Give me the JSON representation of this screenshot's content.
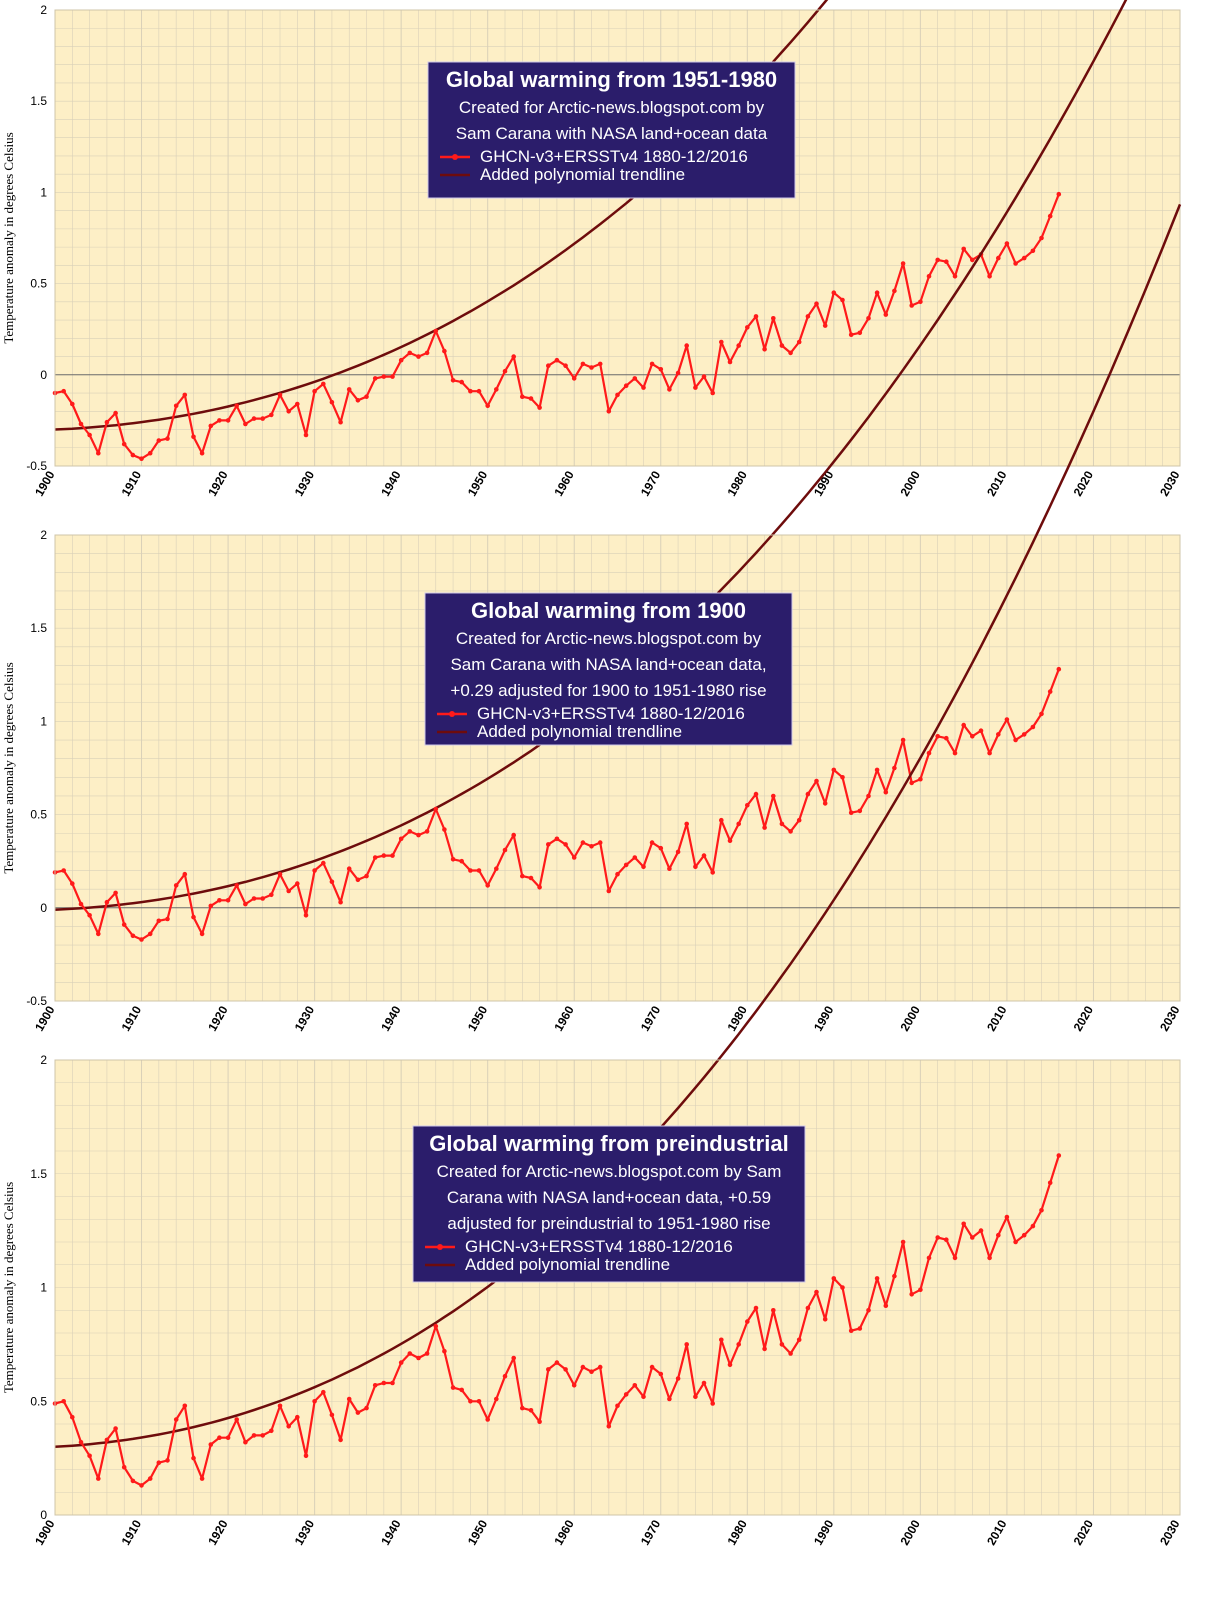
{
  "colors": {
    "background": "#fdefc6",
    "grid": "#d9d0b8",
    "zero_line": "#6b6b6b",
    "data_series": "#ff1a1a",
    "trendline": "#6e0c0c",
    "legend_bg": "#2b1d6b",
    "legend_text": "#ffffff"
  },
  "anomalies_1951_1980": {
    "years": [
      1900,
      1901,
      1902,
      1903,
      1904,
      1905,
      1906,
      1907,
      1908,
      1909,
      1910,
      1911,
      1912,
      1913,
      1914,
      1915,
      1916,
      1917,
      1918,
      1919,
      1920,
      1921,
      1922,
      1923,
      1924,
      1925,
      1926,
      1927,
      1928,
      1929,
      1930,
      1931,
      1932,
      1933,
      1934,
      1935,
      1936,
      1937,
      1938,
      1939,
      1940,
      1941,
      1942,
      1943,
      1944,
      1945,
      1946,
      1947,
      1948,
      1949,
      1950,
      1951,
      1952,
      1953,
      1954,
      1955,
      1956,
      1957,
      1958,
      1959,
      1960,
      1961,
      1962,
      1963,
      1964,
      1965,
      1966,
      1967,
      1968,
      1969,
      1970,
      1971,
      1972,
      1973,
      1974,
      1975,
      1976,
      1977,
      1978,
      1979,
      1980,
      1981,
      1982,
      1983,
      1984,
      1985,
      1986,
      1987,
      1988,
      1989,
      1990,
      1991,
      1992,
      1993,
      1994,
      1995,
      1996,
      1997,
      1998,
      1999,
      2000,
      2001,
      2002,
      2003,
      2004,
      2005,
      2006,
      2007,
      2008,
      2009,
      2010,
      2011,
      2012,
      2013,
      2014,
      2015,
      2016
    ],
    "values": [
      -0.1,
      -0.09,
      -0.16,
      -0.27,
      -0.33,
      -0.43,
      -0.26,
      -0.21,
      -0.38,
      -0.44,
      -0.46,
      -0.43,
      -0.36,
      -0.35,
      -0.17,
      -0.11,
      -0.34,
      -0.43,
      -0.28,
      -0.25,
      -0.25,
      -0.17,
      -0.27,
      -0.24,
      -0.24,
      -0.22,
      -0.11,
      -0.2,
      -0.16,
      -0.33,
      -0.09,
      -0.05,
      -0.15,
      -0.26,
      -0.08,
      -0.14,
      -0.12,
      -0.02,
      -0.01,
      -0.01,
      0.08,
      0.12,
      0.1,
      0.12,
      0.24,
      0.13,
      -0.03,
      -0.04,
      -0.09,
      -0.09,
      -0.17,
      -0.08,
      0.02,
      0.1,
      -0.12,
      -0.13,
      -0.18,
      0.05,
      0.08,
      0.05,
      -0.02,
      0.06,
      0.04,
      0.06,
      -0.2,
      -0.11,
      -0.06,
      -0.02,
      -0.07,
      0.06,
      0.03,
      -0.08,
      0.01,
      0.16,
      -0.07,
      -0.01,
      -0.1,
      0.18,
      0.07,
      0.16,
      0.26,
      0.32,
      0.14,
      0.31,
      0.16,
      0.12,
      0.18,
      0.32,
      0.39,
      0.27,
      0.45,
      0.41,
      0.22,
      0.23,
      0.31,
      0.45,
      0.33,
      0.46,
      0.61,
      0.38,
      0.4,
      0.54,
      0.63,
      0.62,
      0.54,
      0.69,
      0.63,
      0.66,
      0.54,
      0.64,
      0.72,
      0.61,
      0.64,
      0.68,
      0.75,
      0.87,
      0.99
    ]
  },
  "charts": [
    {
      "chart_data": {
        "type": "line",
        "title": "Global warming from 1951-1980",
        "subtitle_lines": [
          "Created for Arctic-news.blogspot.com by",
          "Sam Carana with NASA land+ocean data"
        ],
        "xlabel": "",
        "ylabel": "Temperature anomaly in degrees Celsius",
        "xlim": [
          1900,
          2030
        ],
        "ylim": [
          -0.5,
          2
        ],
        "x_ticks": [
          "1900",
          "1910",
          "1920",
          "1930",
          "1940",
          "1950",
          "1960",
          "1970",
          "1980",
          "1990",
          "2000",
          "2010",
          "2020",
          "2030"
        ],
        "y_ticks": [
          "-0.5",
          "0",
          "0.5",
          "1",
          "1.5",
          "2"
        ],
        "grid": true,
        "offset": 0,
        "series": [
          {
            "name": "GHCN-v3+ERSSTv4 1880-12/2016",
            "kind": "data"
          },
          {
            "name": "Added polynomial trendline",
            "kind": "trend",
            "coefficients": [
              -0.3,
              0.00198,
              0.0002,
              8.3e-07
            ]
          }
        ]
      }
    },
    {
      "chart_data": {
        "type": "line",
        "title": "Global warming from 1900",
        "subtitle_lines": [
          "Created for Arctic-news.blogspot.com by",
          "Sam Carana with NASA land+ocean data,",
          "+0.29 adjusted for 1900 to 1951-1980 rise"
        ],
        "xlabel": "",
        "ylabel": "Temperature anomaly in degrees Celsius",
        "xlim": [
          1900,
          2030
        ],
        "ylim": [
          -0.5,
          2
        ],
        "x_ticks": [
          "1900",
          "1910",
          "1920",
          "1930",
          "1940",
          "1950",
          "1960",
          "1970",
          "1980",
          "1990",
          "2000",
          "2010",
          "2020",
          "2030"
        ],
        "y_ticks": [
          "-0.5",
          "0",
          "0.5",
          "1",
          "1.5",
          "2"
        ],
        "grid": true,
        "offset": 0.29,
        "series": [
          {
            "name": "GHCN-v3+ERSSTv4 1880-12/2016",
            "kind": "data"
          },
          {
            "name": "Added polynomial trendline",
            "kind": "trend",
            "coefficients": [
              -0.01,
              0.00198,
              0.0002,
              8.3e-07
            ]
          }
        ]
      }
    },
    {
      "chart_data": {
        "type": "line",
        "title": "Global warming from preindustrial",
        "subtitle_lines": [
          "Created for Arctic-news.blogspot.com by Sam",
          "Carana with NASA land+ocean data, +0.59",
          "adjusted for preindustrial to 1951-1980 rise"
        ],
        "xlabel": "",
        "ylabel": "Temperature anomaly in degrees Celsius",
        "xlim": [
          1900,
          2030
        ],
        "ylim": [
          0,
          2
        ],
        "x_ticks": [
          "1900",
          "1910",
          "1920",
          "1930",
          "1940",
          "1950",
          "1960",
          "1970",
          "1980",
          "1990",
          "2000",
          "2010",
          "2020",
          "2030"
        ],
        "y_ticks": [
          "0",
          "0.5",
          "1",
          "1.5",
          "2"
        ],
        "grid": true,
        "offset": 0.59,
        "series": [
          {
            "name": "GHCN-v3+ERSSTv4 1880-12/2016",
            "kind": "data"
          },
          {
            "name": "Added polynomial trendline",
            "kind": "trend",
            "coefficients": [
              0.3,
              0.00198,
              0.0002,
              8.3e-07
            ]
          }
        ]
      }
    }
  ]
}
